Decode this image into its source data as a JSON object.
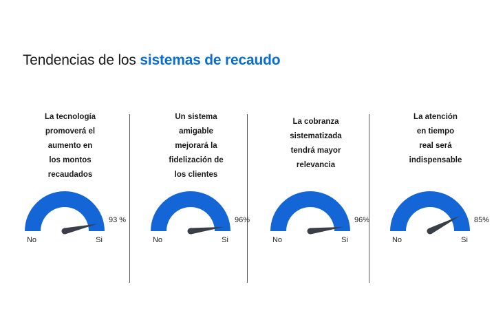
{
  "title": {
    "prefix": "Tendencias de los ",
    "highlight": "sistemas de recaudo"
  },
  "colors": {
    "accent": "#0a6ed1",
    "gauge_fill": "#1466d6",
    "needle": "#3a3f47",
    "text": "#1a1a1a"
  },
  "chart_data": [
    {
      "type": "gauge",
      "question_lines": [
        "La tecnología",
        "promoverá el",
        "aumento en",
        "los montos",
        "recaudados"
      ],
      "value": 93,
      "value_label": "93 %",
      "min_label": "No",
      "max_label": "Si"
    },
    {
      "type": "gauge",
      "question_lines": [
        "Un sistema",
        "amigable",
        "mejorará la",
        "fidelización de",
        "los clientes"
      ],
      "value": 96,
      "value_label": "96%",
      "min_label": "No",
      "max_label": "Si"
    },
    {
      "type": "gauge",
      "question_lines": [
        "La cobranza",
        "sistematizada",
        "tendrá mayor",
        "relevancia"
      ],
      "value": 96,
      "value_label": "96%",
      "min_label": "No",
      "max_label": "Si"
    },
    {
      "type": "gauge",
      "question_lines": [
        "La atención",
        "en tiempo",
        "real será",
        "indispensable"
      ],
      "value": 85,
      "value_label": "85%",
      "min_label": "No",
      "max_label": "Si"
    }
  ]
}
